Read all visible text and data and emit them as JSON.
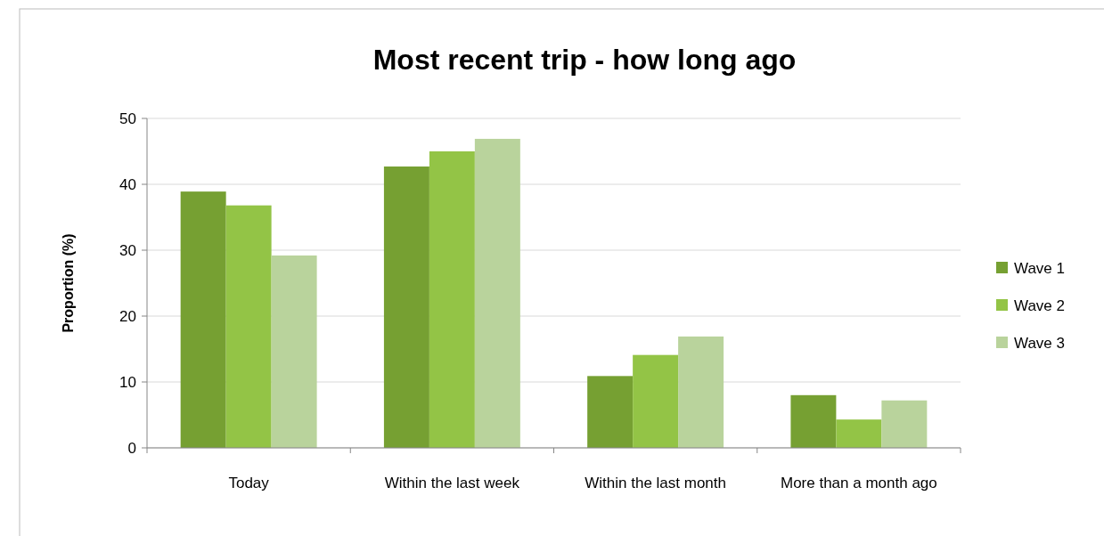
{
  "chart_data": {
    "type": "bar",
    "title": "Most recent trip - how long ago",
    "ylabel": "Proportion (%)",
    "categories": [
      "Today",
      "Within the last week",
      "Within the last month",
      "More than a month ago"
    ],
    "series": [
      {
        "name": "Wave 1",
        "color": "#76a032",
        "values": [
          38.9,
          42.7,
          10.9,
          8.0
        ]
      },
      {
        "name": "Wave 2",
        "color": "#93c446",
        "values": [
          36.8,
          45.0,
          14.1,
          4.3
        ]
      },
      {
        "name": "Wave 3",
        "color": "#b9d39c",
        "values": [
          29.2,
          46.9,
          16.9,
          7.2
        ]
      }
    ],
    "ylim": [
      0,
      50
    ],
    "yticks": [
      0,
      10,
      20,
      30,
      40,
      50
    ],
    "grid": "y",
    "legend": "right"
  }
}
